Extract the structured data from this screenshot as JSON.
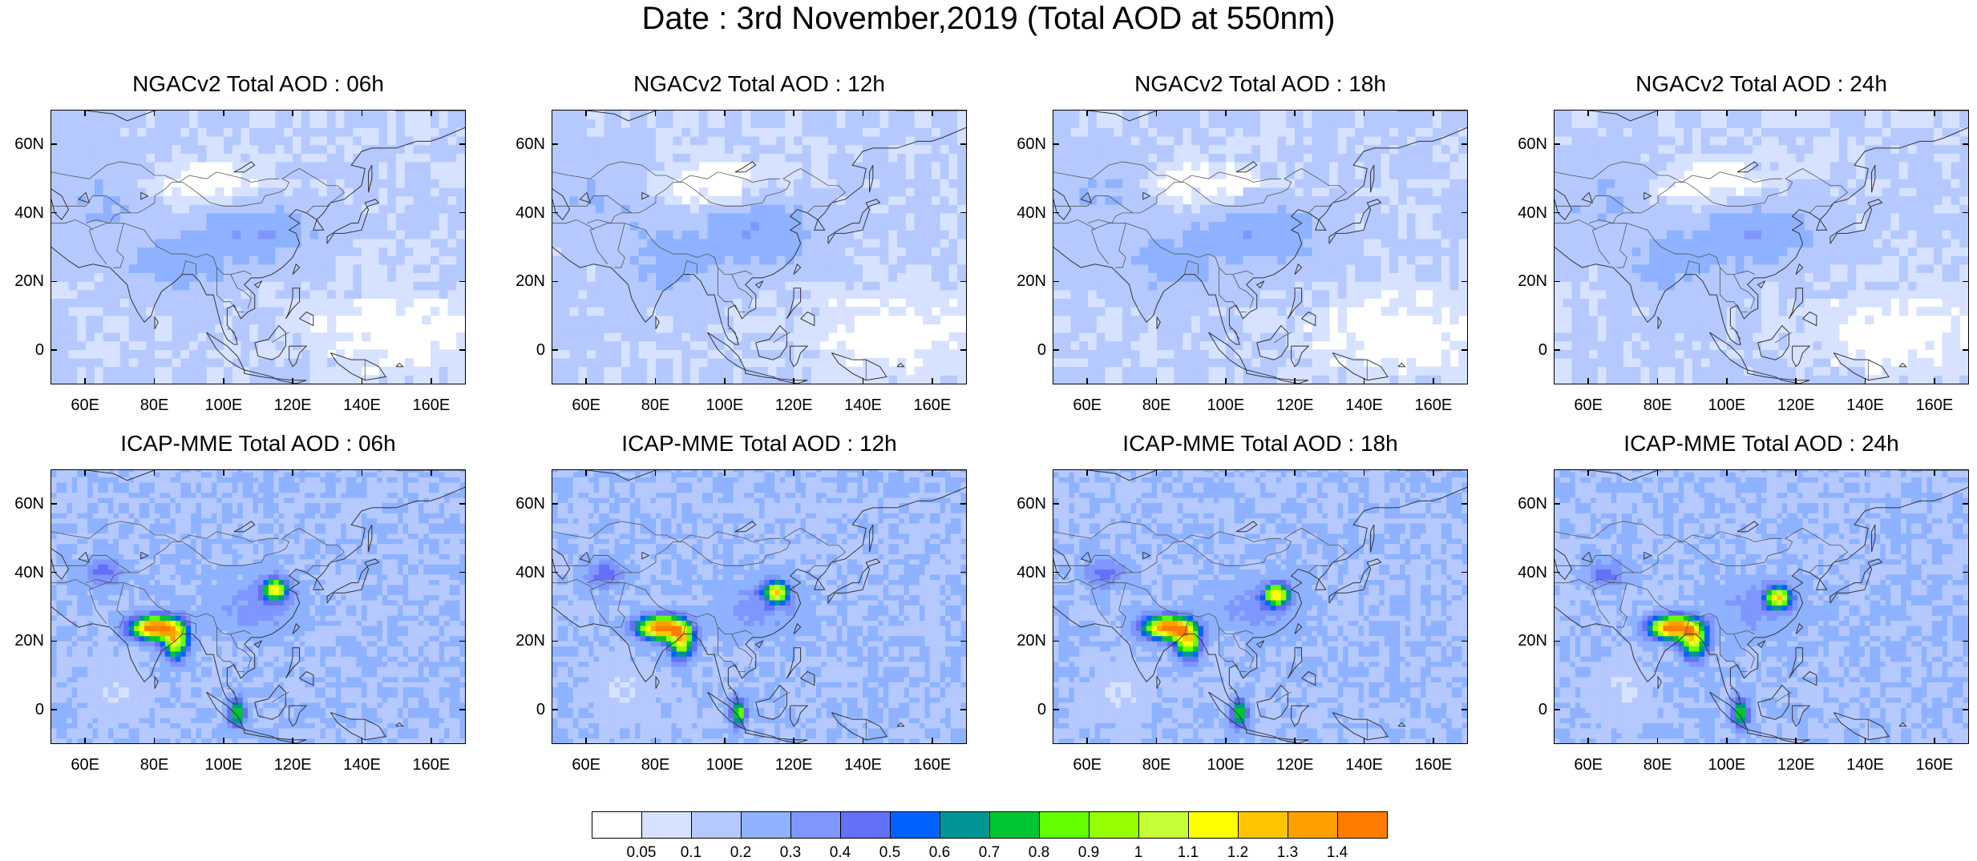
{
  "title": "Date : 3rd November,2019 (Total AOD at 550nm)",
  "panels": [
    {
      "model": "NGACv2",
      "title": "NGACv2 Total AOD : 06h"
    },
    {
      "model": "NGACv2",
      "title": "NGACv2 Total AOD : 12h"
    },
    {
      "model": "NGACv2",
      "title": "NGACv2 Total AOD : 18h"
    },
    {
      "model": "NGACv2",
      "title": "NGACv2 Total AOD : 24h"
    },
    {
      "model": "ICAP-MME",
      "title": "ICAP-MME Total AOD : 06h"
    },
    {
      "model": "ICAP-MME",
      "title": "ICAP-MME Total AOD : 12h"
    },
    {
      "model": "ICAP-MME",
      "title": "ICAP-MME Total AOD : 18h"
    },
    {
      "model": "ICAP-MME",
      "title": "ICAP-MME Total AOD : 24h"
    }
  ],
  "axes": {
    "x_ticks": [
      "60E",
      "80E",
      "100E",
      "120E",
      "140E",
      "160E"
    ],
    "x_values": [
      60,
      80,
      100,
      120,
      140,
      160
    ],
    "y_ticks": [
      "60N",
      "40N",
      "20N",
      "0"
    ],
    "y_values": [
      60,
      40,
      20,
      0
    ],
    "lon_range": [
      50,
      170
    ],
    "lat_range": [
      -10,
      70
    ]
  },
  "colorbar": {
    "labels": [
      "0.05",
      "0.1",
      "0.2",
      "0.3",
      "0.4",
      "0.5",
      "0.6",
      "0.7",
      "0.8",
      "0.9",
      "1",
      "1.1",
      "1.2",
      "1.3",
      "1.4"
    ],
    "colors": [
      "#ffffff",
      "#d6e2ff",
      "#b5c9ff",
      "#8eb2ff",
      "#7f96ff",
      "#6370f8",
      "#0063ff",
      "#009696",
      "#00c633",
      "#63ff00",
      "#96ff00",
      "#c6ff33",
      "#ffff00",
      "#ffc600",
      "#ffa000",
      "#ff7c00",
      "#ff1900"
    ]
  }
}
